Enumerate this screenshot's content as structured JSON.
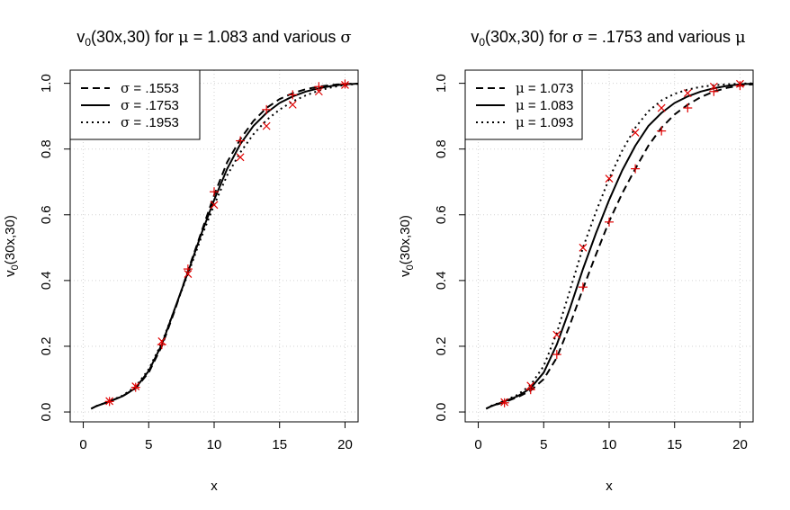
{
  "chart_data": [
    {
      "type": "line",
      "title_main": "v",
      "title_sub": "0",
      "title_rest": "(30x,30) for ",
      "title_param_symbol": "μ",
      "title_param_value": " = 1.083 and various ",
      "title_vary_symbol": "σ",
      "xlabel": "x",
      "ylabel_main": "v",
      "ylabel_sub": "0",
      "ylabel_rest": "(30x,30)",
      "xlim": [
        -1,
        21
      ],
      "ylim": [
        -0.03,
        1.04
      ],
      "x_ticks": [
        0,
        5,
        10,
        15,
        20
      ],
      "x_tick_labels": [
        "0",
        "5",
        "10",
        "15",
        "20"
      ],
      "y_ticks": [
        0.0,
        0.2,
        0.4,
        0.6,
        0.8,
        1.0
      ],
      "y_tick_labels": [
        "0.0",
        "0.2",
        "0.4",
        "0.6",
        "0.8",
        "1.0"
      ],
      "grid": true,
      "legend_position": "top-left",
      "series": [
        {
          "name": "σ = .1553",
          "legend_symbol": "σ",
          "legend_value": " = .1553",
          "style": "dashed",
          "x": [
            0.6,
            1,
            2,
            3,
            4,
            5,
            6,
            7,
            8,
            9,
            10,
            11,
            12,
            13,
            14,
            15,
            16,
            17,
            18,
            19,
            20,
            21
          ],
          "values": [
            0.01,
            0.018,
            0.032,
            0.048,
            0.072,
            0.12,
            0.2,
            0.31,
            0.43,
            0.545,
            0.66,
            0.76,
            0.83,
            0.885,
            0.925,
            0.952,
            0.97,
            0.982,
            0.99,
            0.995,
            0.998,
            0.999
          ]
        },
        {
          "name": "σ = .1753",
          "legend_symbol": "σ",
          "legend_value": " = .1753",
          "style": "solid",
          "x": [
            0.6,
            1,
            2,
            3,
            4,
            5,
            6,
            7,
            8,
            9,
            10,
            11,
            12,
            13,
            14,
            15,
            16,
            17,
            18,
            19,
            20,
            21
          ],
          "values": [
            0.01,
            0.018,
            0.032,
            0.048,
            0.073,
            0.125,
            0.205,
            0.315,
            0.425,
            0.54,
            0.645,
            0.74,
            0.815,
            0.87,
            0.91,
            0.94,
            0.96,
            0.975,
            0.985,
            0.992,
            0.997,
            0.999
          ]
        },
        {
          "name": "σ = .1953",
          "legend_symbol": "σ",
          "legend_value": " = .1953",
          "style": "dotted",
          "x": [
            0.6,
            1,
            2,
            3,
            4,
            5,
            6,
            7,
            8,
            9,
            10,
            11,
            12,
            13,
            14,
            15,
            16,
            17,
            18,
            19,
            20,
            21
          ],
          "values": [
            0.01,
            0.018,
            0.033,
            0.05,
            0.077,
            0.13,
            0.21,
            0.315,
            0.42,
            0.53,
            0.63,
            0.72,
            0.79,
            0.845,
            0.888,
            0.92,
            0.945,
            0.963,
            0.978,
            0.988,
            0.995,
            0.998
          ]
        }
      ],
      "markers": {
        "plus": {
          "x": [
            2,
            4,
            6,
            8,
            10,
            12,
            14,
            16,
            18,
            20
          ],
          "values": [
            0.032,
            0.075,
            0.205,
            0.435,
            0.67,
            0.825,
            0.92,
            0.965,
            0.99,
            0.998
          ]
        },
        "cross": {
          "x": [
            2,
            4,
            6,
            8,
            10,
            12,
            14,
            16,
            18,
            20
          ],
          "values": [
            0.033,
            0.078,
            0.215,
            0.42,
            0.63,
            0.775,
            0.87,
            0.935,
            0.975,
            0.995
          ]
        }
      }
    },
    {
      "type": "line",
      "title_main": "v",
      "title_sub": "0",
      "title_rest": "(30x,30) for ",
      "title_param_symbol": "σ",
      "title_param_value": " = .1753 and various ",
      "title_vary_symbol": "μ",
      "xlabel": "x",
      "ylabel_main": "v",
      "ylabel_sub": "0",
      "ylabel_rest": "(30x,30)",
      "xlim": [
        -1,
        21
      ],
      "ylim": [
        -0.03,
        1.04
      ],
      "x_ticks": [
        0,
        5,
        10,
        15,
        20
      ],
      "x_tick_labels": [
        "0",
        "5",
        "10",
        "15",
        "20"
      ],
      "y_ticks": [
        0.0,
        0.2,
        0.4,
        0.6,
        0.8,
        1.0
      ],
      "y_tick_labels": [
        "0.0",
        "0.2",
        "0.4",
        "0.6",
        "0.8",
        "1.0"
      ],
      "grid": true,
      "legend_position": "top-left",
      "series": [
        {
          "name": "μ = 1.073",
          "legend_symbol": "μ",
          "legend_value": " = 1.073",
          "style": "dashed",
          "x": [
            0.6,
            1,
            2,
            3,
            4,
            5,
            6,
            7,
            8,
            9,
            10,
            11,
            12,
            13,
            14,
            15,
            16,
            17,
            18,
            19,
            20,
            21
          ],
          "values": [
            0.01,
            0.018,
            0.03,
            0.045,
            0.065,
            0.1,
            0.165,
            0.265,
            0.375,
            0.48,
            0.58,
            0.665,
            0.74,
            0.81,
            0.865,
            0.905,
            0.935,
            0.958,
            0.975,
            0.986,
            0.993,
            0.997
          ]
        },
        {
          "name": "μ = 1.083",
          "legend_symbol": "μ",
          "legend_value": " = 1.083",
          "style": "solid",
          "x": [
            0.6,
            1,
            2,
            3,
            4,
            5,
            6,
            7,
            8,
            9,
            10,
            11,
            12,
            13,
            14,
            15,
            16,
            17,
            18,
            19,
            20,
            21
          ],
          "values": [
            0.01,
            0.018,
            0.032,
            0.048,
            0.072,
            0.12,
            0.205,
            0.315,
            0.435,
            0.545,
            0.645,
            0.735,
            0.81,
            0.87,
            0.91,
            0.94,
            0.96,
            0.975,
            0.985,
            0.992,
            0.997,
            0.999
          ]
        },
        {
          "name": "μ = 1.093",
          "legend_symbol": "μ",
          "legend_value": " = 1.093",
          "style": "dotted",
          "x": [
            0.6,
            1,
            2,
            3,
            4,
            5,
            6,
            7,
            8,
            9,
            10,
            11,
            12,
            13,
            14,
            15,
            16,
            17,
            18,
            19,
            20,
            21
          ],
          "values": [
            0.01,
            0.019,
            0.034,
            0.052,
            0.082,
            0.14,
            0.24,
            0.37,
            0.5,
            0.61,
            0.71,
            0.795,
            0.865,
            0.915,
            0.948,
            0.968,
            0.981,
            0.989,
            0.994,
            0.997,
            0.999,
            1.0
          ]
        }
      ],
      "markers": {
        "plus": {
          "x": [
            2,
            4,
            6,
            8,
            10,
            12,
            14,
            16,
            18,
            20
          ],
          "values": [
            0.028,
            0.068,
            0.175,
            0.38,
            0.578,
            0.74,
            0.855,
            0.925,
            0.975,
            0.993
          ]
        },
        "cross": {
          "x": [
            2,
            4,
            6,
            8,
            10,
            12,
            14,
            16,
            18,
            20
          ],
          "values": [
            0.03,
            0.08,
            0.235,
            0.5,
            0.71,
            0.85,
            0.925,
            0.97,
            0.99,
            0.998
          ]
        }
      }
    }
  ]
}
